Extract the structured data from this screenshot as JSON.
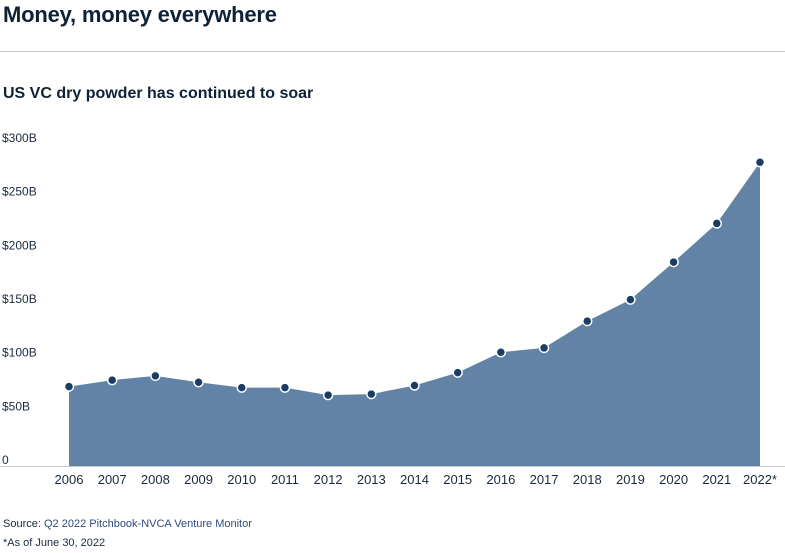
{
  "headline": "Money, money everywhere",
  "subtitle": "US VC dry powder has continued to soar",
  "source_label": "Source:",
  "source_text": "Q2 2022 Pitchbook-NVCA Venture Monitor",
  "note": "*As of June 30, 2022",
  "colors": {
    "area": "#6283a6",
    "marker": "#1b3d63",
    "marker_stroke": "#ffffff",
    "baseline": "#c9c9c9"
  },
  "chart_data": {
    "type": "area",
    "title": "US VC dry powder has continued to soar",
    "xlabel": "",
    "ylabel": "",
    "categories": [
      "2006",
      "2007",
      "2008",
      "2009",
      "2010",
      "2011",
      "2012",
      "2013",
      "2014",
      "2015",
      "2016",
      "2017",
      "2018",
      "2019",
      "2020",
      "2021",
      "2022*"
    ],
    "series": [
      {
        "name": "US VC dry powder ($B)",
        "values": [
          74,
          80,
          84,
          78,
          73,
          73,
          66,
          67,
          75,
          87,
          106,
          110,
          135,
          155,
          190,
          226,
          283
        ]
      }
    ],
    "ylim": [
      0,
      300
    ],
    "yticks": [
      0,
      50,
      100,
      150,
      200,
      250,
      300
    ],
    "ytick_labels": [
      "0",
      "$50B",
      "$100B",
      "$150B",
      "$200B",
      "$250B",
      "$300B"
    ],
    "grid": false,
    "markers": true
  }
}
